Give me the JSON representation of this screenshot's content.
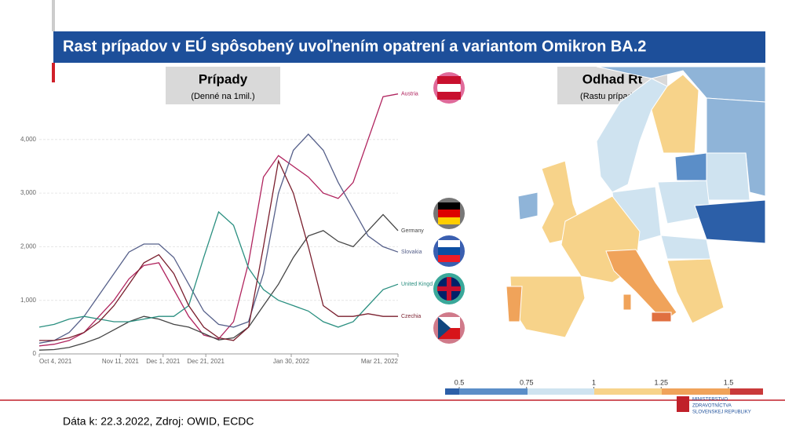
{
  "header": {
    "title": "Rast prípadov v EÚ spôsobený uvoľnením opatrení a variantom Omikron BA.2"
  },
  "chart_data": {
    "type": "line",
    "title": "Prípady",
    "subtitle": "(Denné na 1mil.)",
    "x": [
      "2021-10-04",
      "2021-10-11",
      "2021-10-18",
      "2021-10-25",
      "2021-11-01",
      "2021-11-08",
      "2021-11-15",
      "2021-11-22",
      "2021-11-29",
      "2021-12-06",
      "2021-12-13",
      "2021-12-20",
      "2021-12-27",
      "2022-01-03",
      "2022-01-10",
      "2022-01-17",
      "2022-01-24",
      "2022-01-31",
      "2022-02-07",
      "2022-02-14",
      "2022-02-21",
      "2022-02-28",
      "2022-03-07",
      "2022-03-14",
      "2022-03-21"
    ],
    "xlim": [
      "2021-10-04",
      "2022-03-21"
    ],
    "xticks": [
      {
        "value": "2021-10-04",
        "label": "Oct 4, 2021"
      },
      {
        "value": "2021-11-11",
        "label": "Nov 11, 2021"
      },
      {
        "value": "2021-12-01",
        "label": "Dec 1, 2021"
      },
      {
        "value": "2021-12-21",
        "label": "Dec 21, 2021"
      },
      {
        "value": "2022-01-30",
        "label": "Jan 30, 2022"
      },
      {
        "value": "2022-03-21",
        "label": "Mar 21, 2022"
      }
    ],
    "ylim": [
      0,
      5000
    ],
    "yticks": [
      0,
      {
        "value": 1000,
        "label": "1,000"
      },
      {
        "value": 2000,
        "label": "2,000"
      },
      {
        "value": 3000,
        "label": "3,000"
      },
      {
        "value": 4000,
        "label": "4,000"
      }
    ],
    "grid": true,
    "series": [
      {
        "name": "Austria",
        "color": "#b0245e",
        "values": [
          150,
          180,
          250,
          400,
          700,
          1000,
          1400,
          1650,
          1700,
          1200,
          700,
          350,
          280,
          600,
          1700,
          3300,
          3700,
          3500,
          3300,
          3000,
          2900,
          3200,
          4000,
          4800,
          4850
        ]
      },
      {
        "name": "Germany",
        "color": "#444444",
        "values": [
          70,
          80,
          120,
          200,
          300,
          450,
          600,
          700,
          650,
          550,
          500,
          380,
          260,
          300,
          500,
          900,
          1300,
          1800,
          2200,
          2300,
          2100,
          2000,
          2300,
          2600,
          2300
        ]
      },
      {
        "name": "Slovakia",
        "color": "#56608a",
        "values": [
          200,
          250,
          400,
          700,
          1100,
          1500,
          1900,
          2050,
          2050,
          1800,
          1300,
          800,
          550,
          500,
          600,
          1500,
          3000,
          3800,
          4100,
          3800,
          3200,
          2700,
          2200,
          2000,
          1900
        ]
      },
      {
        "name": "United Kingd",
        "color": "#2a8f80",
        "values": [
          500,
          550,
          650,
          700,
          650,
          600,
          600,
          650,
          700,
          700,
          900,
          1800,
          2650,
          2400,
          1600,
          1200,
          1000,
          900,
          800,
          600,
          500,
          600,
          900,
          1200,
          1300
        ]
      },
      {
        "name": "Czechia",
        "color": "#7a1f2e",
        "values": [
          250,
          250,
          300,
          400,
          600,
          900,
          1300,
          1700,
          1850,
          1500,
          900,
          500,
          300,
          250,
          500,
          2000,
          3600,
          3000,
          2000,
          900,
          700,
          700,
          750,
          700,
          700
        ]
      }
    ]
  },
  "map": {
    "title": "Odhad Rt",
    "subtitle": "(Rastu prípadov)",
    "ticks": [
      0.5,
      0.75,
      1,
      1.25,
      1.5
    ]
  },
  "footer": {
    "source": "Dáta k: 22.3.2022, Zdroj: OWID, ECDC",
    "logo": [
      "MINISTERSTVO",
      "ZDRAVOTNÍCTVA",
      "SLOVENSKEJ REPUBLIKY"
    ]
  }
}
